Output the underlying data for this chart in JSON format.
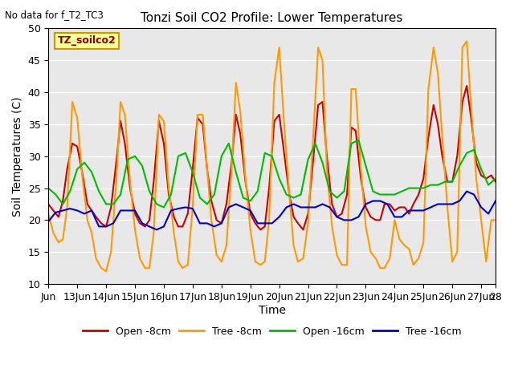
{
  "title": "Tonzi Soil CO2 Profile: Lower Temperatures",
  "subtitle": "No data for f_T2_TC3",
  "ylabel": "Soil Temperatures (C)",
  "xlabel": "Time",
  "ylim": [
    10,
    50
  ],
  "background_color": "#e8e8e8",
  "tick_labels": [
    "Jun",
    "13Jun",
    "14Jun",
    "15Jun",
    "16Jun",
    "17Jun",
    "18Jun",
    "19Jun",
    "20Jun",
    "21Jun",
    "22Jun",
    "23Jun",
    "24Jun",
    "25Jun",
    "26Jun",
    "27Jun",
    "28"
  ],
  "tick_positions": [
    0,
    1,
    2,
    3,
    4,
    5,
    6,
    7,
    8,
    9,
    10,
    11,
    12,
    13,
    14,
    15,
    15.5
  ],
  "legend_box_label": "TZ_soilco2",
  "legend_box_color": "#ffff99",
  "legend_box_edge": "#cc9900",
  "series": {
    "open8": {
      "label": "Open -8cm",
      "color": "#cc0000",
      "linewidth": 1.5
    },
    "tree8": {
      "label": "Tree -8cm",
      "color": "#ff9900",
      "linewidth": 1.5
    },
    "open16": {
      "label": "Open -16cm",
      "color": "#00bb00",
      "linewidth": 1.5
    },
    "tree16": {
      "label": "Tree -16cm",
      "color": "#0000cc",
      "linewidth": 1.5
    }
  },
  "open8_x": [
    0.0,
    0.17,
    0.35,
    0.5,
    0.65,
    0.83,
    1.0,
    1.17,
    1.35,
    1.5,
    1.65,
    1.83,
    2.0,
    2.17,
    2.35,
    2.5,
    2.65,
    2.83,
    3.0,
    3.17,
    3.35,
    3.5,
    3.65,
    3.83,
    4.0,
    4.17,
    4.35,
    4.5,
    4.65,
    4.83,
    5.0,
    5.17,
    5.35,
    5.5,
    5.65,
    5.83,
    6.0,
    6.17,
    6.35,
    6.5,
    6.65,
    6.83,
    7.0,
    7.17,
    7.35,
    7.5,
    7.65,
    7.83,
    8.0,
    8.17,
    8.35,
    8.5,
    8.65,
    8.83,
    9.0,
    9.17,
    9.35,
    9.5,
    9.65,
    9.83,
    10.0,
    10.17,
    10.35,
    10.5,
    10.65,
    10.83,
    11.0,
    11.17,
    11.35,
    11.5,
    11.65,
    11.83,
    12.0,
    12.17,
    12.35,
    12.5,
    12.65,
    12.83,
    13.0,
    13.17,
    13.35,
    13.5,
    13.65,
    13.83,
    14.0,
    14.17,
    14.35,
    14.5,
    14.65,
    14.83,
    15.0,
    15.17,
    15.35,
    15.5
  ],
  "open8_y": [
    22.5,
    21.5,
    20.5,
    23.0,
    28.0,
    32.0,
    31.5,
    27.5,
    22.5,
    21.5,
    20.5,
    19.5,
    19.0,
    22.0,
    29.0,
    35.5,
    32.0,
    25.0,
    21.0,
    19.5,
    19.0,
    20.0,
    26.0,
    35.5,
    32.0,
    24.0,
    20.5,
    19.0,
    19.0,
    21.0,
    28.0,
    36.0,
    35.0,
    28.0,
    23.0,
    20.0,
    19.5,
    22.5,
    29.0,
    36.5,
    33.5,
    26.0,
    21.0,
    19.5,
    18.5,
    19.0,
    25.0,
    35.5,
    36.5,
    30.5,
    24.0,
    20.5,
    19.5,
    18.5,
    21.0,
    29.0,
    38.0,
    38.5,
    30.0,
    22.5,
    20.5,
    21.0,
    24.0,
    34.5,
    34.0,
    26.5,
    22.0,
    20.5,
    20.0,
    20.0,
    22.5,
    22.5,
    21.5,
    22.0,
    22.0,
    21.0,
    22.5,
    24.0,
    26.5,
    33.0,
    38.0,
    35.0,
    30.0,
    26.0,
    26.0,
    30.0,
    38.5,
    41.0,
    36.0,
    29.0,
    27.0,
    26.5,
    27.0,
    26.0
  ],
  "tree8_x": [
    0.0,
    0.17,
    0.35,
    0.5,
    0.65,
    0.83,
    1.0,
    1.17,
    1.35,
    1.5,
    1.65,
    1.83,
    2.0,
    2.17,
    2.35,
    2.5,
    2.65,
    2.83,
    3.0,
    3.17,
    3.35,
    3.5,
    3.65,
    3.83,
    4.0,
    4.17,
    4.35,
    4.5,
    4.65,
    4.83,
    5.0,
    5.17,
    5.35,
    5.5,
    5.65,
    5.83,
    6.0,
    6.17,
    6.35,
    6.5,
    6.65,
    6.83,
    7.0,
    7.17,
    7.35,
    7.5,
    7.65,
    7.83,
    8.0,
    8.17,
    8.35,
    8.5,
    8.65,
    8.83,
    9.0,
    9.17,
    9.35,
    9.5,
    9.65,
    9.83,
    10.0,
    10.17,
    10.35,
    10.5,
    10.65,
    10.83,
    11.0,
    11.17,
    11.35,
    11.5,
    11.65,
    11.83,
    12.0,
    12.17,
    12.35,
    12.5,
    12.65,
    12.83,
    13.0,
    13.17,
    13.35,
    13.5,
    13.65,
    13.83,
    14.0,
    14.17,
    14.35,
    14.5,
    14.65,
    14.83,
    15.0,
    15.17,
    15.35,
    15.5
  ],
  "tree8_y": [
    21.0,
    18.0,
    16.5,
    17.0,
    22.0,
    38.5,
    36.0,
    27.0,
    20.0,
    18.0,
    14.0,
    12.5,
    12.0,
    15.0,
    26.0,
    38.5,
    36.5,
    26.0,
    18.5,
    14.0,
    12.5,
    12.5,
    18.0,
    36.5,
    35.5,
    25.0,
    18.0,
    13.5,
    12.5,
    13.0,
    22.0,
    36.5,
    36.5,
    28.0,
    20.0,
    14.5,
    13.5,
    16.0,
    28.0,
    41.5,
    37.0,
    26.5,
    18.5,
    13.5,
    13.0,
    13.5,
    20.0,
    41.5,
    47.0,
    35.0,
    24.0,
    16.0,
    13.5,
    14.0,
    19.5,
    32.5,
    47.0,
    45.0,
    28.0,
    19.0,
    14.5,
    13.0,
    13.0,
    40.5,
    40.5,
    28.0,
    19.0,
    15.0,
    14.0,
    12.5,
    12.5,
    14.0,
    20.0,
    17.0,
    16.0,
    15.5,
    13.0,
    14.0,
    16.5,
    40.5,
    47.0,
    43.0,
    33.0,
    22.0,
    13.5,
    15.0,
    47.0,
    48.0,
    38.0,
    26.5,
    20.0,
    13.5,
    20.0,
    20.0
  ],
  "open16_x": [
    0.0,
    0.25,
    0.5,
    0.75,
    1.0,
    1.25,
    1.5,
    1.75,
    2.0,
    2.25,
    2.5,
    2.75,
    3.0,
    3.25,
    3.5,
    3.75,
    4.0,
    4.25,
    4.5,
    4.75,
    5.0,
    5.25,
    5.5,
    5.75,
    6.0,
    6.25,
    6.5,
    6.75,
    7.0,
    7.25,
    7.5,
    7.75,
    8.0,
    8.25,
    8.5,
    8.75,
    9.0,
    9.25,
    9.5,
    9.75,
    10.0,
    10.25,
    10.5,
    10.75,
    11.0,
    11.25,
    11.5,
    11.75,
    12.0,
    12.25,
    12.5,
    12.75,
    13.0,
    13.25,
    13.5,
    13.75,
    14.0,
    14.25,
    14.5,
    14.75,
    15.0,
    15.25,
    15.5
  ],
  "open16_y": [
    25.0,
    24.0,
    22.5,
    24.5,
    28.0,
    29.0,
    27.5,
    24.5,
    22.5,
    22.5,
    24.0,
    29.5,
    30.0,
    28.5,
    24.5,
    22.5,
    22.0,
    24.0,
    30.0,
    30.5,
    27.5,
    23.5,
    22.5,
    24.0,
    30.0,
    32.0,
    27.5,
    23.5,
    23.0,
    24.5,
    30.5,
    30.0,
    26.5,
    24.0,
    23.5,
    24.0,
    29.5,
    32.0,
    29.0,
    24.5,
    23.5,
    24.5,
    32.0,
    32.5,
    28.5,
    24.5,
    24.0,
    24.0,
    24.0,
    24.5,
    25.0,
    25.0,
    25.0,
    25.5,
    25.5,
    26.0,
    26.0,
    28.5,
    30.5,
    31.0,
    28.0,
    25.5,
    26.5
  ],
  "tree16_x": [
    0.0,
    0.25,
    0.5,
    0.75,
    1.0,
    1.25,
    1.5,
    1.75,
    2.0,
    2.25,
    2.5,
    2.75,
    3.0,
    3.25,
    3.5,
    3.75,
    4.0,
    4.25,
    4.5,
    4.75,
    5.0,
    5.25,
    5.5,
    5.75,
    6.0,
    6.25,
    6.5,
    6.75,
    7.0,
    7.25,
    7.5,
    7.75,
    8.0,
    8.25,
    8.5,
    8.75,
    9.0,
    9.25,
    9.5,
    9.75,
    10.0,
    10.25,
    10.5,
    10.75,
    11.0,
    11.25,
    11.5,
    11.75,
    12.0,
    12.25,
    12.5,
    12.75,
    13.0,
    13.25,
    13.5,
    13.75,
    14.0,
    14.25,
    14.5,
    14.75,
    15.0,
    15.25,
    15.5
  ],
  "tree16_y": [
    19.8,
    21.2,
    21.5,
    21.8,
    21.5,
    21.0,
    21.5,
    19.0,
    19.0,
    19.5,
    21.5,
    21.5,
    21.5,
    19.5,
    19.0,
    18.5,
    19.0,
    21.5,
    21.8,
    22.0,
    21.8,
    19.5,
    19.5,
    19.0,
    19.5,
    22.0,
    22.5,
    22.0,
    21.5,
    19.5,
    19.5,
    19.5,
    20.5,
    22.0,
    22.5,
    22.0,
    22.0,
    22.0,
    22.5,
    22.0,
    20.5,
    20.0,
    20.0,
    20.5,
    22.5,
    23.0,
    23.0,
    22.5,
    20.5,
    20.5,
    21.5,
    21.5,
    21.5,
    22.0,
    22.5,
    22.5,
    22.5,
    23.0,
    24.5,
    24.0,
    22.0,
    21.0,
    23.0
  ]
}
